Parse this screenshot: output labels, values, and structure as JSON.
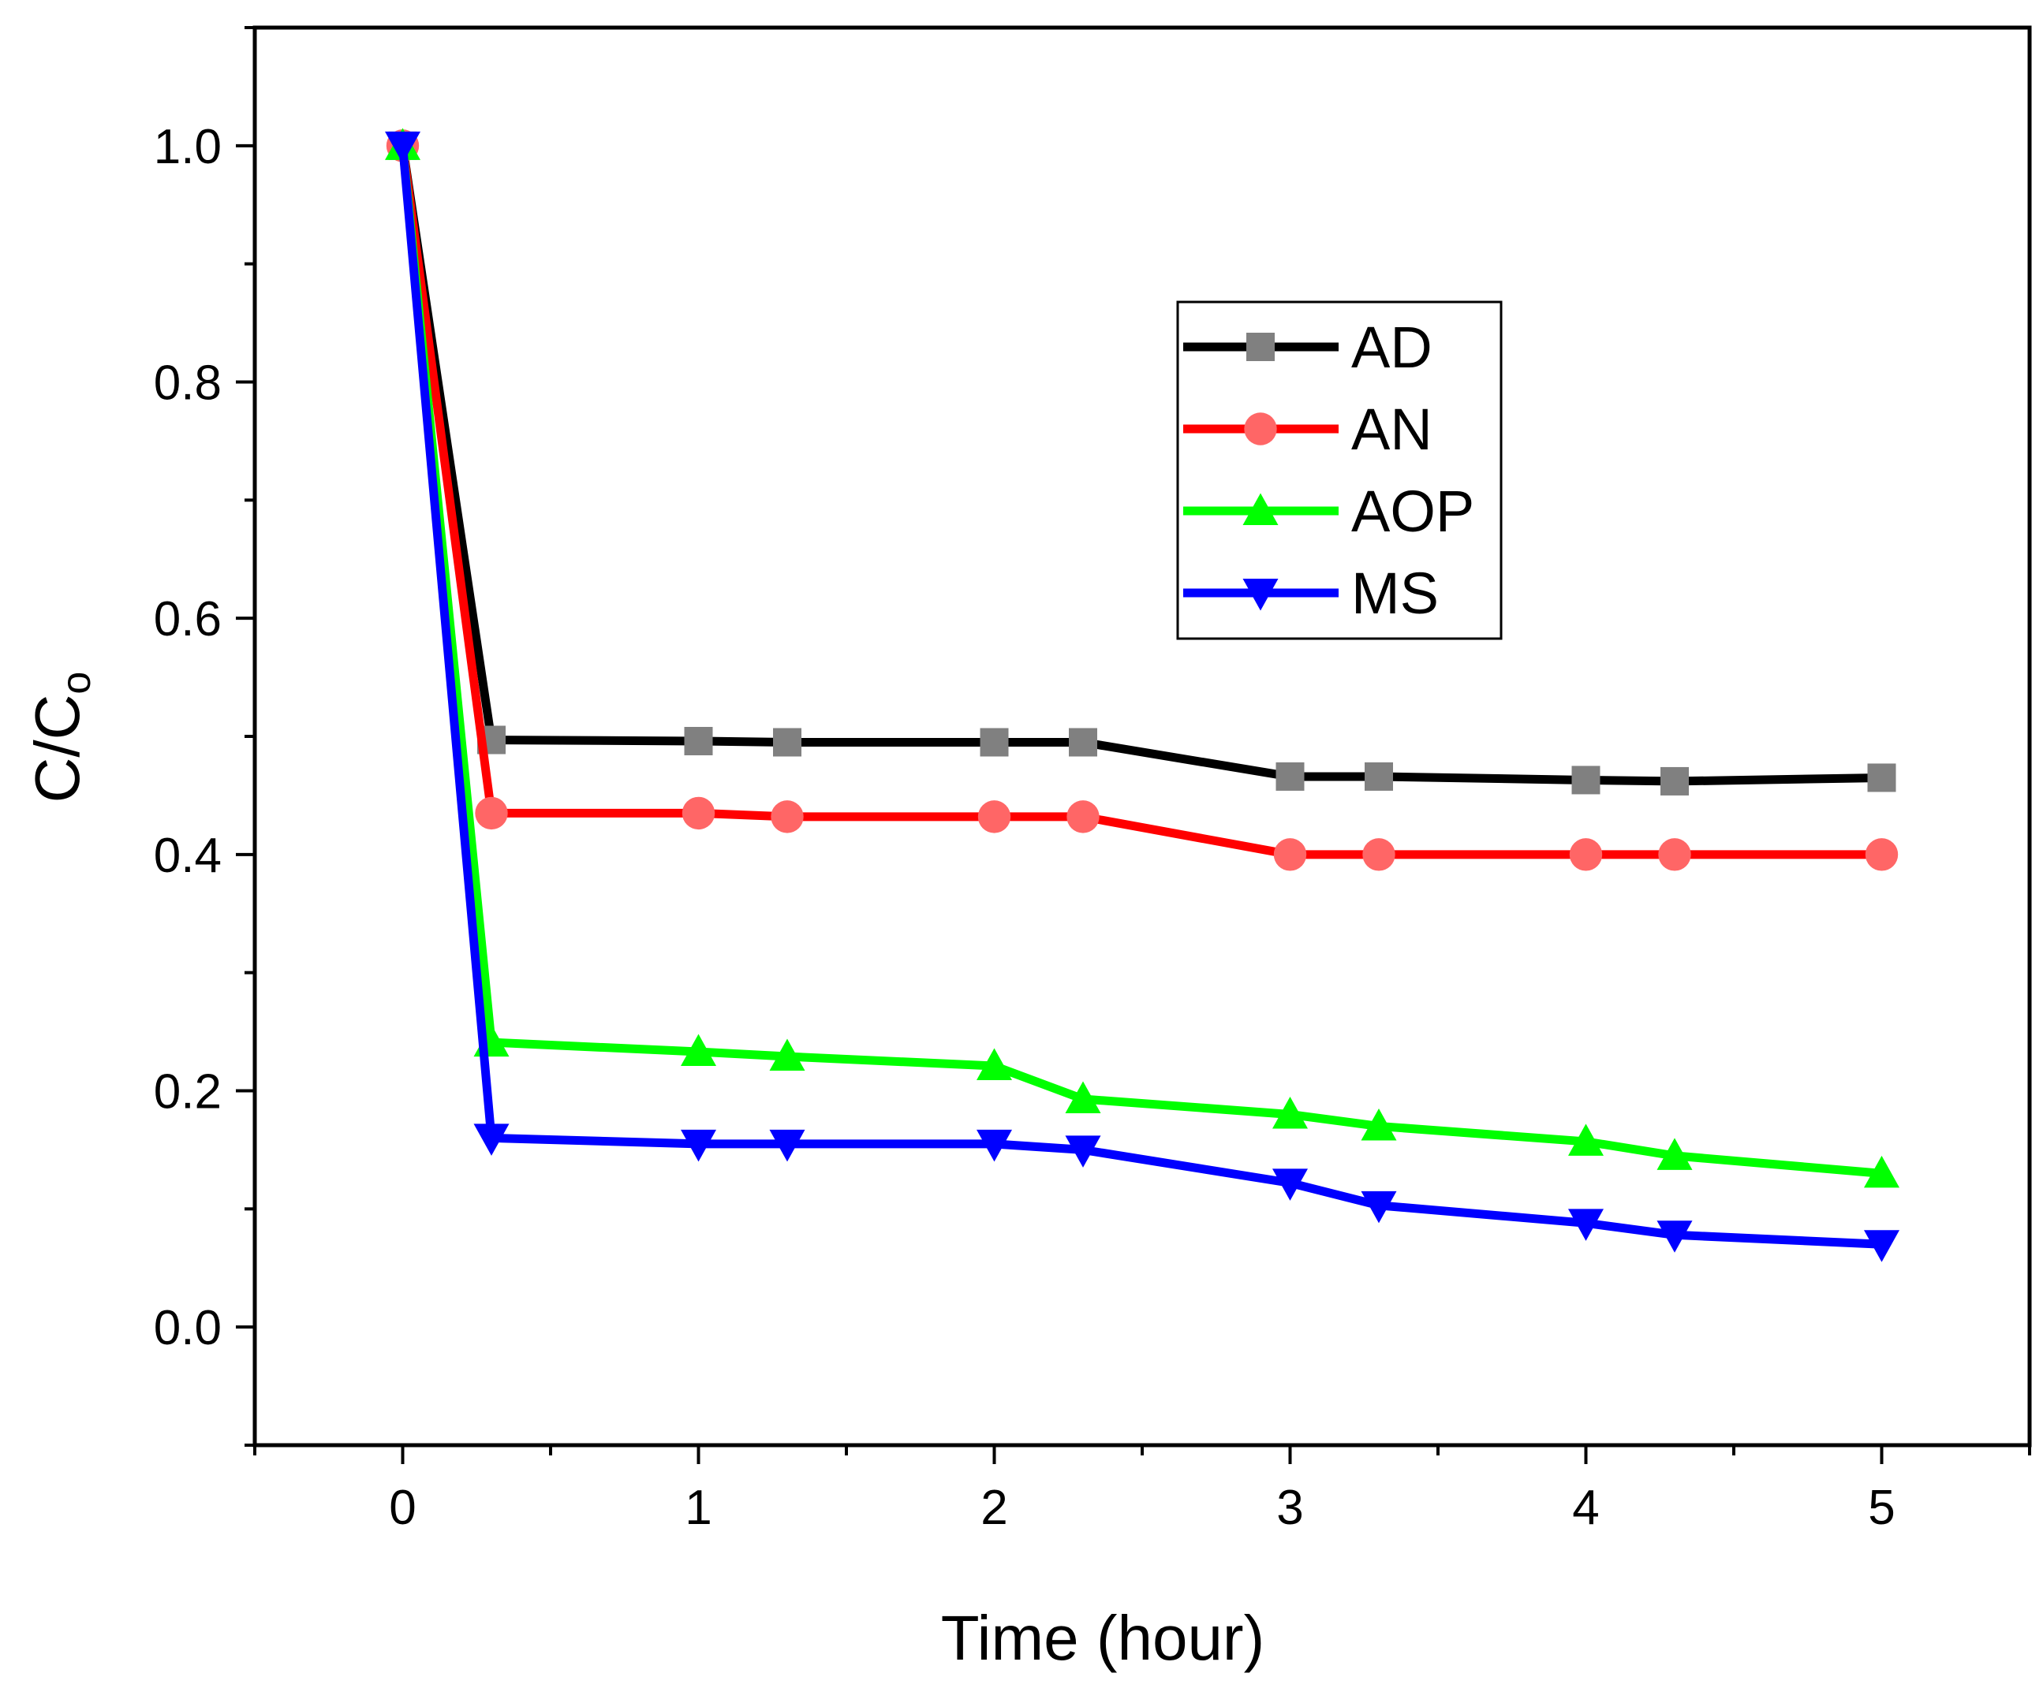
{
  "chart_data": {
    "type": "line",
    "title": "",
    "xlabel": "Time (hour)",
    "ylabel_main": "C/C",
    "ylabel_sub": "o",
    "xlim": [
      -0.5,
      5.5
    ],
    "ylim": [
      -0.1,
      1.1
    ],
    "x_ticks": [
      0,
      1,
      2,
      3,
      4,
      5
    ],
    "x_tick_labels": [
      "0",
      "1",
      "2",
      "3",
      "4",
      "5"
    ],
    "y_ticks": [
      0.0,
      0.2,
      0.4,
      0.6,
      0.8,
      1.0
    ],
    "y_tick_labels": [
      "0.0",
      "0.2",
      "0.4",
      "0.6",
      "0.8",
      "1.0"
    ],
    "grid": false,
    "legend_position": "upper-right",
    "x": [
      0,
      0.3,
      1,
      1.3,
      2,
      2.3,
      3,
      3.3,
      4,
      4.3,
      5
    ],
    "series": [
      {
        "name": "AD",
        "color": "#000000",
        "marker_color": "#808080",
        "marker": "square",
        "values": [
          1.0,
          0.497,
          0.496,
          0.495,
          0.495,
          0.495,
          0.466,
          0.466,
          0.463,
          0.462,
          0.465
        ]
      },
      {
        "name": "AN",
        "color": "#ff0000",
        "marker_color": "#ff6666",
        "marker": "circle",
        "values": [
          1.0,
          0.435,
          0.435,
          0.432,
          0.432,
          0.432,
          0.4,
          0.4,
          0.4,
          0.4,
          0.4
        ]
      },
      {
        "name": "AOP",
        "color": "#00ff00",
        "marker_color": "#00ff00",
        "marker": "triangle-up",
        "values": [
          1.0,
          0.241,
          0.233,
          0.229,
          0.221,
          0.193,
          0.18,
          0.17,
          0.157,
          0.145,
          0.13
        ]
      },
      {
        "name": "MS",
        "color": "#0000ff",
        "marker_color": "#0000ff",
        "marker": "triangle-down",
        "values": [
          1.0,
          0.16,
          0.155,
          0.155,
          0.155,
          0.15,
          0.122,
          0.103,
          0.088,
          0.078,
          0.07
        ]
      }
    ]
  }
}
